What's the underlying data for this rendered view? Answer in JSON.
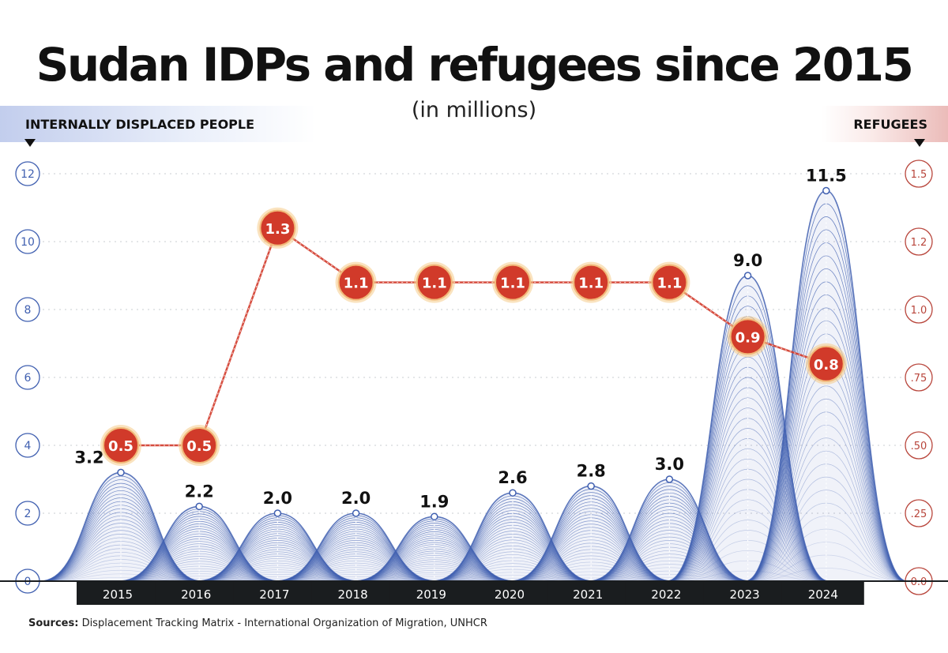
{
  "title": "Sudan IDPs and refugees since 2015",
  "subtitle": "(in millions)",
  "left_axis_label": "INTERNALLY DISPLACED PEOPLE",
  "right_axis_label": "REFUGEES",
  "sources": {
    "label": "Sources:",
    "text": "Displacement Tracking Matrix - International Organization of Migration, UNHCR"
  },
  "colors": {
    "idp": "#3f5fb0",
    "refugee": "#d13a2a",
    "left_axis": "#3f5fb0",
    "right_axis": "#b8453b",
    "year_label_bg": "#1a1d1f"
  },
  "chart_data": {
    "type": "area",
    "categories": [
      "2015",
      "2016",
      "2017",
      "2018",
      "2019",
      "2020",
      "2021",
      "2022",
      "2023",
      "2024"
    ],
    "series": [
      {
        "name": "Internally displaced people",
        "axis": "left",
        "values": [
          3.2,
          2.2,
          2.0,
          2.0,
          1.9,
          2.6,
          2.8,
          3.0,
          9.0,
          11.5
        ],
        "labels": [
          "3.2",
          "2.2",
          "2.0",
          "2.0",
          "1.9",
          "2.6",
          "2.8",
          "3.0",
          "9.0",
          "11.5"
        ]
      },
      {
        "name": "Refugees",
        "axis": "right",
        "type": "line",
        "values": [
          0.5,
          0.5,
          1.3,
          1.1,
          1.1,
          1.1,
          1.1,
          1.1,
          0.9,
          0.8
        ],
        "labels": [
          "0.5",
          "0.5",
          "1.3",
          "1.1",
          "1.1",
          "1.1",
          "1.1",
          "1.1",
          "0.9",
          "0.8"
        ]
      }
    ],
    "left_axis": {
      "ylim": [
        0,
        12
      ],
      "ticks": [
        0,
        2,
        4,
        6,
        8,
        10,
        12
      ],
      "tick_labels": [
        "0",
        "2",
        "4",
        "6",
        "8",
        "10",
        "12"
      ]
    },
    "right_axis": {
      "ylim": [
        0,
        1.5
      ],
      "ticks": [
        0,
        0.25,
        0.5,
        0.75,
        1.0,
        1.25,
        1.5
      ],
      "tick_labels": [
        "0.0",
        ".25",
        ".50",
        ".75",
        "1.0",
        "1.2",
        "1.5"
      ]
    },
    "grid": true
  }
}
